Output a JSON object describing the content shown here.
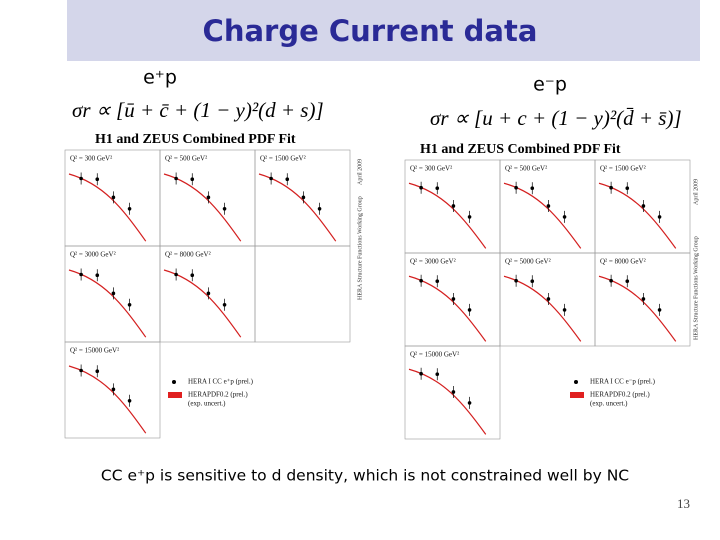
{
  "header": {
    "title": "Charge Current data"
  },
  "left": {
    "label": "e⁺p",
    "formula": "σr ∝ [ū + c̄ + (1 − y)²(d + s)]",
    "plot_title": "H1 and ZEUS Combined PDF Fit",
    "panels": [
      "Q² = 300 GeV²",
      "Q² = 500 GeV²",
      "Q² = 1500 GeV²",
      "Q² = 3000 GeV²",
      "Q² = 8000 GeV²",
      "Q² = 15000 GeV²"
    ],
    "legend": [
      "HERA I CC e⁺p (prel.)",
      "HERAPDF0.2 (prel.)",
      "(exp. uncert.)"
    ],
    "side_note": "HERA Structure Functions Working Group",
    "date": "April 2009"
  },
  "right": {
    "label": "e⁻p",
    "formula": "σr ∝ [u + c + (1 − y)²(d̄ + s̄)]",
    "plot_title": "H1 and ZEUS Combined PDF Fit",
    "panels": [
      "Q² = 300 GeV²",
      "Q² = 500 GeV²",
      "Q² = 1500 GeV²",
      "Q² = 3000 GeV²",
      "Q² = 5000 GeV²",
      "Q² = 8000 GeV²",
      "Q² = 15000 GeV²"
    ],
    "legend": [
      "HERA I CC e⁻p (prel.)",
      "HERAPDF0.2 (prel.)",
      "(exp. uncert.)"
    ],
    "side_note": "HERA Structure Functions Working Group",
    "date": "April 2009"
  },
  "caption": "CC e⁺p is sensitive to d density, which is not constrained well by NC",
  "page_number": "13"
}
